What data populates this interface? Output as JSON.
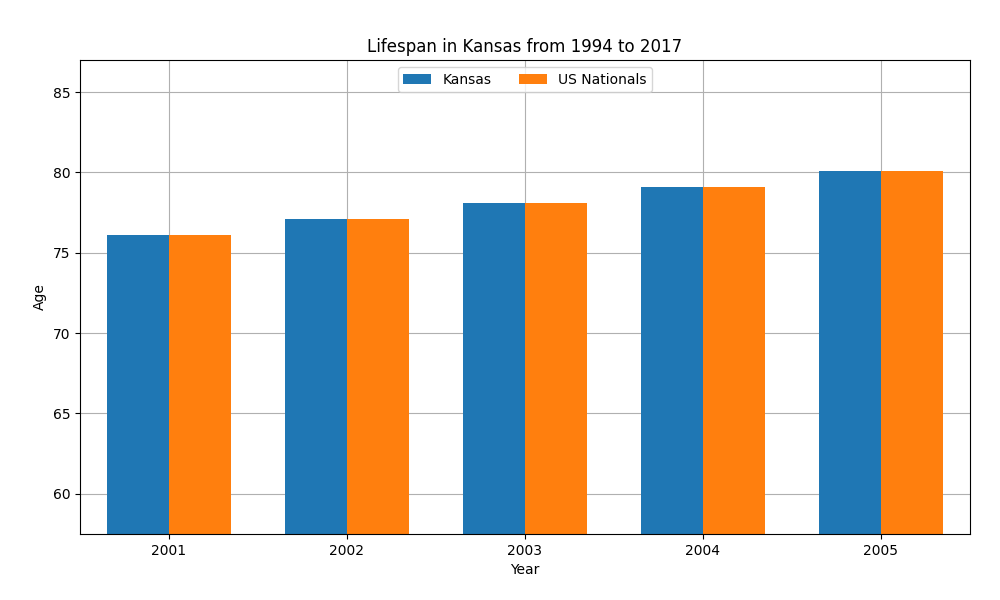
{
  "chart_data": {
    "type": "bar",
    "title": "Lifespan in Kansas from 1994 to 2017",
    "x_label": "Year",
    "y_label": "Age",
    "categories": [
      "2001",
      "2002",
      "2003",
      "2004",
      "2005"
    ],
    "series": [
      {
        "name": "Kansas",
        "values": [
          76.1,
          77.1,
          78.1,
          79.1,
          80.1
        ]
      },
      {
        "name": "US Nationals",
        "values": [
          76.1,
          77.1,
          78.1,
          79.1,
          80.1
        ]
      }
    ],
    "ylim": [
      57.5,
      87
    ],
    "yticks": [
      60,
      65,
      70,
      75,
      80,
      85
    ],
    "grid": true,
    "legend": "upper center"
  }
}
